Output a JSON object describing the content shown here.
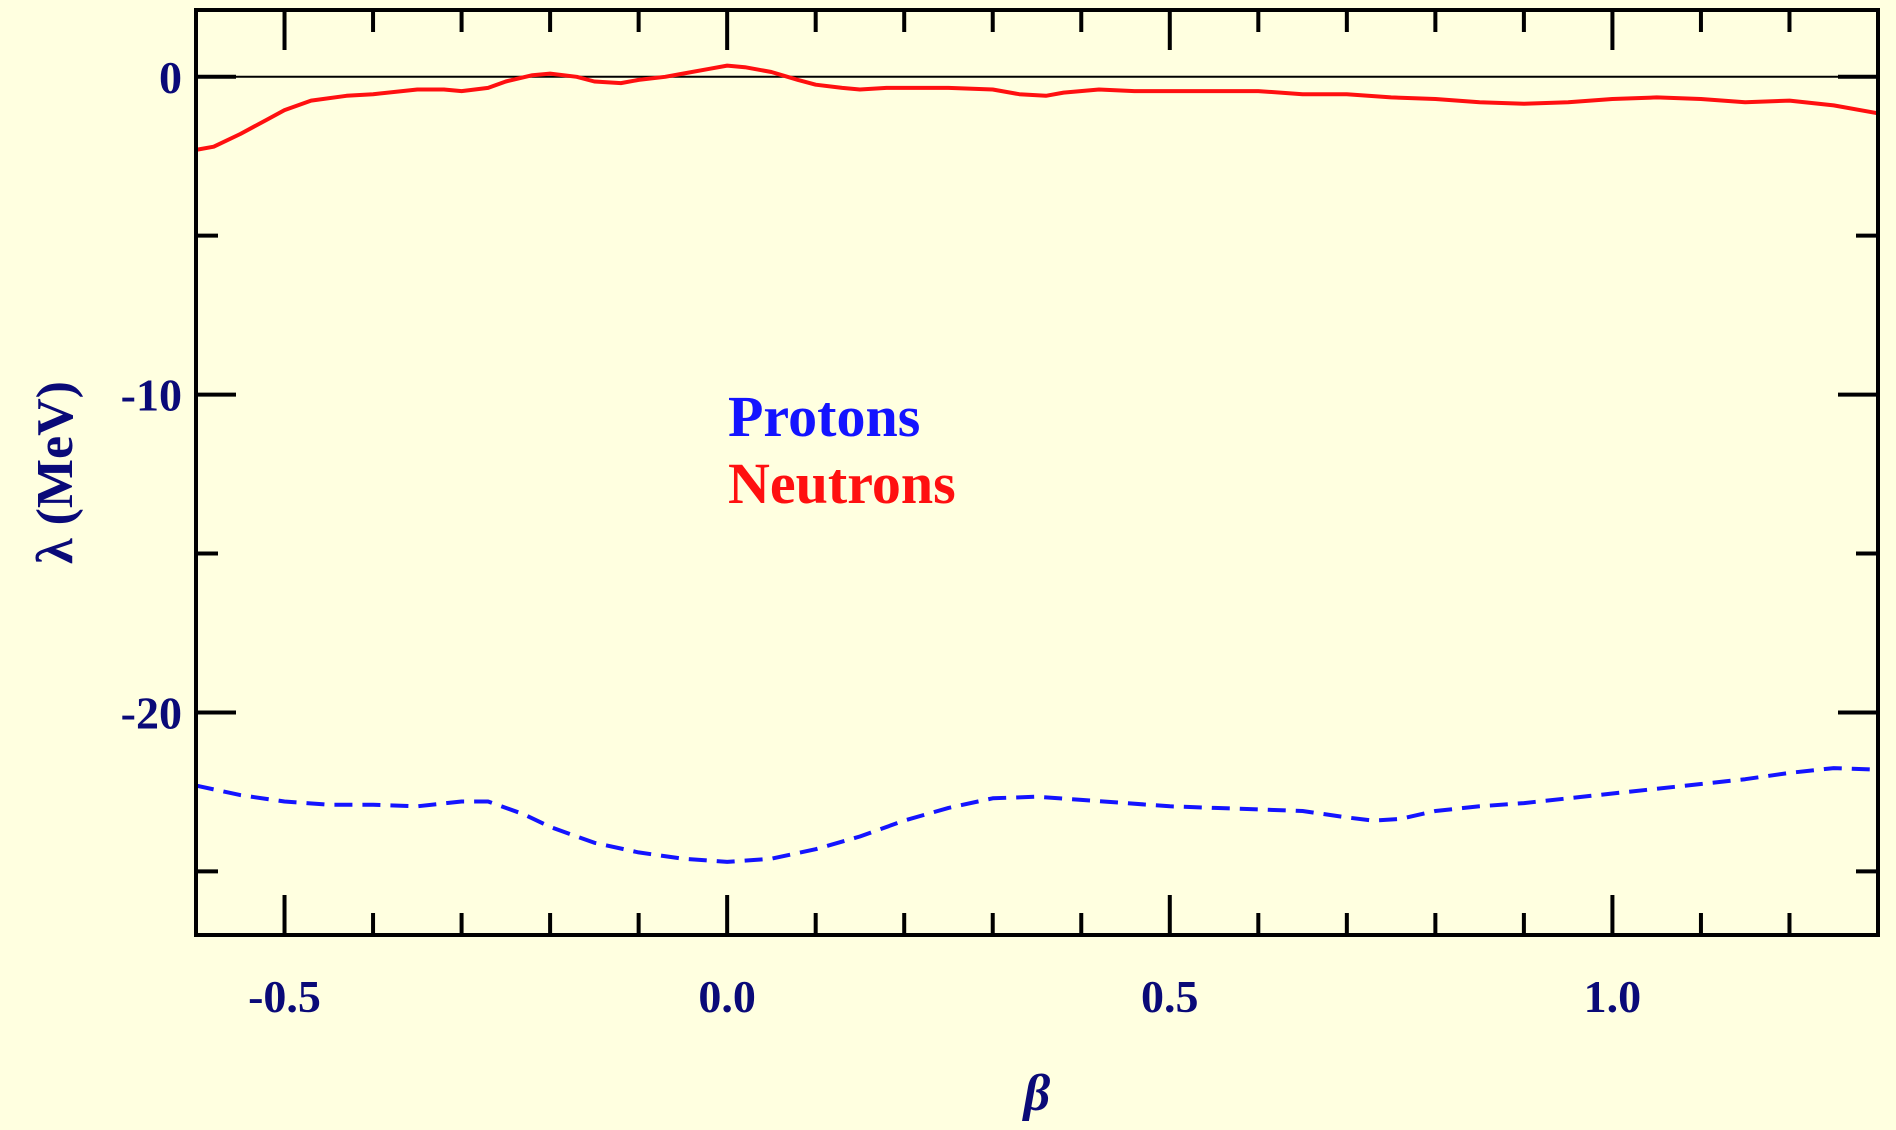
{
  "chart_data": {
    "type": "line",
    "xlabel": "β",
    "ylabel": "λ (MeV)",
    "xlim": [
      -0.6,
      1.3
    ],
    "ylim": [
      -27,
      2.1
    ],
    "x_ticks": [
      {
        "value": -0.5,
        "label": "-0.5"
      },
      {
        "value": 0.0,
        "label": "0.0"
      },
      {
        "value": 0.5,
        "label": "0.5"
      },
      {
        "value": 1.0,
        "label": "1.0"
      }
    ],
    "y_ticks": [
      {
        "value": 0,
        "label": "0"
      },
      {
        "value": -10,
        "label": "-10"
      },
      {
        "value": -20,
        "label": "-20"
      }
    ],
    "zero_line": true,
    "grid": false,
    "legend_position": "center",
    "series": [
      {
        "name": "Protons",
        "color": "#1414FF",
        "style": "dashed",
        "points": [
          [
            -0.6,
            -22.3
          ],
          [
            -0.55,
            -22.6
          ],
          [
            -0.5,
            -22.8
          ],
          [
            -0.45,
            -22.9
          ],
          [
            -0.4,
            -22.9
          ],
          [
            -0.35,
            -22.95
          ],
          [
            -0.3,
            -22.8
          ],
          [
            -0.27,
            -22.8
          ],
          [
            -0.23,
            -23.2
          ],
          [
            -0.2,
            -23.6
          ],
          [
            -0.15,
            -24.1
          ],
          [
            -0.1,
            -24.4
          ],
          [
            -0.05,
            -24.6
          ],
          [
            0.0,
            -24.7
          ],
          [
            0.05,
            -24.6
          ],
          [
            0.1,
            -24.3
          ],
          [
            0.15,
            -23.9
          ],
          [
            0.2,
            -23.4
          ],
          [
            0.25,
            -23.0
          ],
          [
            0.3,
            -22.7
          ],
          [
            0.35,
            -22.65
          ],
          [
            0.4,
            -22.75
          ],
          [
            0.45,
            -22.85
          ],
          [
            0.5,
            -22.95
          ],
          [
            0.55,
            -23.0
          ],
          [
            0.6,
            -23.05
          ],
          [
            0.65,
            -23.1
          ],
          [
            0.7,
            -23.3
          ],
          [
            0.73,
            -23.4
          ],
          [
            0.76,
            -23.35
          ],
          [
            0.8,
            -23.1
          ],
          [
            0.85,
            -22.95
          ],
          [
            0.9,
            -22.85
          ],
          [
            0.95,
            -22.7
          ],
          [
            1.0,
            -22.55
          ],
          [
            1.05,
            -22.4
          ],
          [
            1.1,
            -22.25
          ],
          [
            1.15,
            -22.1
          ],
          [
            1.2,
            -21.9
          ],
          [
            1.25,
            -21.75
          ],
          [
            1.3,
            -21.8
          ]
        ]
      },
      {
        "name": "Neutrons",
        "color": "#FF1010",
        "style": "solid",
        "points": [
          [
            -0.6,
            -2.3
          ],
          [
            -0.58,
            -2.2
          ],
          [
            -0.55,
            -1.8
          ],
          [
            -0.52,
            -1.35
          ],
          [
            -0.5,
            -1.05
          ],
          [
            -0.47,
            -0.75
          ],
          [
            -0.43,
            -0.6
          ],
          [
            -0.4,
            -0.55
          ],
          [
            -0.35,
            -0.4
          ],
          [
            -0.32,
            -0.4
          ],
          [
            -0.3,
            -0.45
          ],
          [
            -0.27,
            -0.35
          ],
          [
            -0.25,
            -0.15
          ],
          [
            -0.22,
            0.05
          ],
          [
            -0.2,
            0.1
          ],
          [
            -0.17,
            0.0
          ],
          [
            -0.15,
            -0.15
          ],
          [
            -0.12,
            -0.2
          ],
          [
            -0.1,
            -0.1
          ],
          [
            -0.07,
            0.0
          ],
          [
            -0.05,
            0.1
          ],
          [
            -0.02,
            0.25
          ],
          [
            0.0,
            0.35
          ],
          [
            0.02,
            0.3
          ],
          [
            0.05,
            0.15
          ],
          [
            0.08,
            -0.1
          ],
          [
            0.1,
            -0.25
          ],
          [
            0.13,
            -0.35
          ],
          [
            0.15,
            -0.4
          ],
          [
            0.18,
            -0.35
          ],
          [
            0.2,
            -0.35
          ],
          [
            0.25,
            -0.35
          ],
          [
            0.3,
            -0.4
          ],
          [
            0.33,
            -0.55
          ],
          [
            0.36,
            -0.6
          ],
          [
            0.38,
            -0.5
          ],
          [
            0.42,
            -0.4
          ],
          [
            0.46,
            -0.45
          ],
          [
            0.5,
            -0.45
          ],
          [
            0.55,
            -0.45
          ],
          [
            0.6,
            -0.45
          ],
          [
            0.65,
            -0.55
          ],
          [
            0.7,
            -0.55
          ],
          [
            0.75,
            -0.65
          ],
          [
            0.8,
            -0.7
          ],
          [
            0.85,
            -0.8
          ],
          [
            0.9,
            -0.85
          ],
          [
            0.95,
            -0.8
          ],
          [
            1.0,
            -0.7
          ],
          [
            1.05,
            -0.65
          ],
          [
            1.1,
            -0.7
          ],
          [
            1.15,
            -0.8
          ],
          [
            1.2,
            -0.75
          ],
          [
            1.25,
            -0.9
          ],
          [
            1.3,
            -1.15
          ]
        ]
      }
    ],
    "legend": [
      {
        "label": "Protons",
        "color": "#1414FF"
      },
      {
        "label": "Neutrons",
        "color": "#FF1010"
      }
    ],
    "colors": {
      "background": "#FFFFE0",
      "axis": "#000000",
      "labels": "#0A0A78"
    }
  }
}
